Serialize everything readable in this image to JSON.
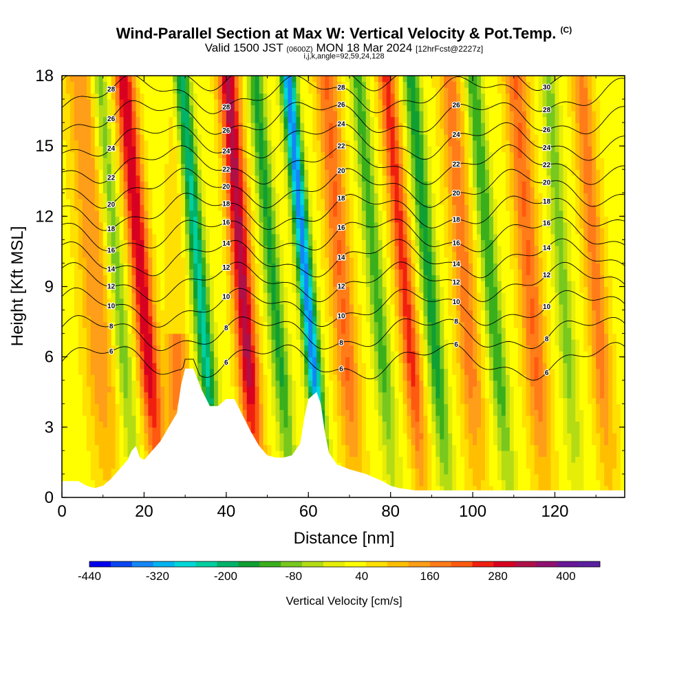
{
  "chart_data": {
    "type": "heatmap",
    "title": "Wind-Parallel Section at Max W: Vertical Velocity & Pot.Temp.",
    "title_mark": "(C)",
    "subtitle_valid": "Valid 1500 JST",
    "subtitle_utc": "(0600Z)",
    "subtitle_date": "MON 18 Mar 2024",
    "subtitle_fcst": "[12hrFcst@2227z]",
    "subtitle_indices": "i,j,k,angle=92,59,24,128",
    "xlabel": "Distance [nm]",
    "ylabel": "Height [Kft MSL]",
    "xlim": [
      0,
      137
    ],
    "ylim": [
      0,
      18
    ],
    "x_ticks": [
      "0",
      "20",
      "40",
      "60",
      "80",
      "100",
      "120"
    ],
    "y_ticks": [
      "0",
      "3",
      "6",
      "9",
      "12",
      "15",
      "18"
    ],
    "colorbar": {
      "title": "Vertical Velocity [cm/s]",
      "tick_labels": [
        "-440",
        "-320",
        "-200",
        "-80",
        "40",
        "160",
        "280",
        "400"
      ],
      "range": [
        -440,
        460
      ],
      "colors": [
        "#0000ee",
        "#0a46f0",
        "#1486f5",
        "#00b4f0",
        "#00d8d8",
        "#00cfa0",
        "#00b26a",
        "#109f32",
        "#3aaf1c",
        "#78c81e",
        "#b4dc14",
        "#e6ee08",
        "#ffff00",
        "#ffe000",
        "#ffbf00",
        "#ff9e18",
        "#ff7c18",
        "#ff5a10",
        "#f02010",
        "#d80020",
        "#b01048",
        "#901070",
        "#681898",
        "#5a20a0"
      ]
    },
    "terrain": [
      [
        0,
        0.7
      ],
      [
        2,
        0.7
      ],
      [
        4,
        0.7
      ],
      [
        6,
        0.5
      ],
      [
        8,
        0.4
      ],
      [
        10,
        0.5
      ],
      [
        12,
        0.8
      ],
      [
        14,
        1.2
      ],
      [
        16,
        1.6
      ],
      [
        17,
        2.0
      ],
      [
        18,
        2.2
      ],
      [
        19,
        1.7
      ],
      [
        20,
        1.6
      ],
      [
        21,
        1.8
      ],
      [
        22,
        2.0
      ],
      [
        24,
        2.4
      ],
      [
        26,
        3.0
      ],
      [
        28,
        3.6
      ],
      [
        29,
        4.8
      ],
      [
        30,
        5.5
      ],
      [
        32,
        5.5
      ],
      [
        34,
        4.6
      ],
      [
        36,
        3.9
      ],
      [
        38,
        3.9
      ],
      [
        40,
        4.2
      ],
      [
        42,
        4.2
      ],
      [
        44,
        3.5
      ],
      [
        46,
        2.8
      ],
      [
        48,
        2.2
      ],
      [
        50,
        1.8
      ],
      [
        52,
        1.7
      ],
      [
        54,
        1.7
      ],
      [
        56,
        1.8
      ],
      [
        58,
        2.3
      ],
      [
        59,
        3.4
      ],
      [
        60,
        4.2
      ],
      [
        62,
        4.5
      ],
      [
        63,
        4.0
      ],
      [
        64,
        2.8
      ],
      [
        65,
        1.9
      ],
      [
        67,
        1.4
      ],
      [
        70,
        1.2
      ],
      [
        74,
        1.0
      ],
      [
        78,
        0.7
      ],
      [
        80,
        0.5
      ],
      [
        82,
        0.4
      ],
      [
        86,
        0.3
      ],
      [
        90,
        0.3
      ],
      [
        100,
        0.3
      ],
      [
        110,
        0.3
      ],
      [
        120,
        0.3
      ],
      [
        137,
        0.3
      ]
    ],
    "theta_contours": [
      {
        "label": "6",
        "base": 5.8
      },
      {
        "label": "8",
        "base": 7.0
      },
      {
        "label": "10",
        "base": 8.1
      },
      {
        "label": "12",
        "base": 9.2
      },
      {
        "label": "14",
        "base": 10.2
      },
      {
        "label": "16",
        "base": 11.2
      },
      {
        "label": "18",
        "base": 12.2
      },
      {
        "label": "20",
        "base": 13.2
      },
      {
        "label": "22",
        "base": 14.2
      },
      {
        "label": "24",
        "base": 15.2
      },
      {
        "label": "26",
        "base": 16.2
      },
      {
        "label": "28",
        "base": 17.2
      },
      {
        "label": "30",
        "base": 18.2
      }
    ],
    "velocity_bands": [
      {
        "x": 10,
        "w": 130,
        "sigma": 3.5,
        "top": 18,
        "tilt": -0.4
      },
      {
        "x": 16,
        "w": -120,
        "sigma": 2.0,
        "top": 18,
        "tilt": -0.5
      },
      {
        "x": 22,
        "w": 280,
        "sigma": 2.5,
        "top": 18,
        "tilt": -0.5
      },
      {
        "x": 28,
        "w": 160,
        "sigma": 2.5,
        "top": 7,
        "tilt": 0
      },
      {
        "x": 36,
        "w": -260,
        "sigma": 2.0,
        "top": 18,
        "tilt": -0.5
      },
      {
        "x": 46,
        "w": 300,
        "sigma": 2.5,
        "top": 18,
        "tilt": -0.4
      },
      {
        "x": 54,
        "w": -180,
        "sigma": 2.0,
        "top": 18,
        "tilt": -0.5
      },
      {
        "x": 62,
        "w": -380,
        "sigma": 1.8,
        "top": 18,
        "tilt": -0.5
      },
      {
        "x": 70,
        "w": 170,
        "sigma": 2.8,
        "top": 18,
        "tilt": -0.4
      },
      {
        "x": 79,
        "w": -150,
        "sigma": 2.0,
        "top": 18,
        "tilt": -0.5
      },
      {
        "x": 86,
        "w": 220,
        "sigma": 2.2,
        "top": 18,
        "tilt": -0.5
      },
      {
        "x": 92,
        "w": -200,
        "sigma": 2.0,
        "top": 18,
        "tilt": -0.5
      },
      {
        "x": 100,
        "w": 150,
        "sigma": 2.8,
        "top": 18,
        "tilt": -0.4
      },
      {
        "x": 107,
        "w": -170,
        "sigma": 2.0,
        "top": 18,
        "tilt": -0.5
      },
      {
        "x": 116,
        "w": 170,
        "sigma": 2.8,
        "top": 18,
        "tilt": -0.4
      },
      {
        "x": 124,
        "w": -110,
        "sigma": 2.0,
        "top": 18,
        "tilt": -0.4
      },
      {
        "x": 132,
        "w": 150,
        "sigma": 2.5,
        "top": 18,
        "tilt": -0.4
      }
    ]
  }
}
